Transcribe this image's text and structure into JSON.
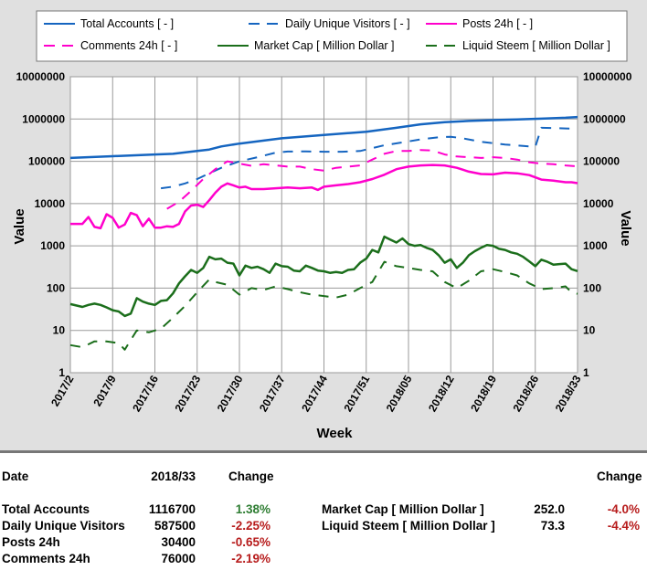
{
  "chart_data": {
    "type": "line",
    "xlabel": "Week",
    "ylabel_left": "Value",
    "ylabel_right": "Value",
    "yscale": "log",
    "ylim": [
      1,
      10000000
    ],
    "y_ticks": [
      "1",
      "10",
      "100",
      "1000",
      "10000",
      "100000",
      "1000000",
      "10000000"
    ],
    "x_ticks": [
      "2017/2",
      "2017/9",
      "2017/16",
      "2017/23",
      "2017/30",
      "2017/37",
      "2017/44",
      "2017/51",
      "2018/05",
      "2018/12",
      "2018/19",
      "2018/26",
      "2018/33"
    ],
    "grid": true,
    "legend_position": "top",
    "series": [
      {
        "name": "Total Accounts [ - ]",
        "color": "#1565c0",
        "dash": "solid",
        "points": [
          [
            0,
            120000
          ],
          [
            7,
            132000
          ],
          [
            14,
            145000
          ],
          [
            17,
            150000
          ],
          [
            21,
            175000
          ],
          [
            23,
            190000
          ],
          [
            25,
            225000
          ],
          [
            28,
            262000
          ],
          [
            35,
            350000
          ],
          [
            42,
            420000
          ],
          [
            49,
            500000
          ],
          [
            54,
            620000
          ],
          [
            58,
            750000
          ],
          [
            62,
            840000
          ],
          [
            66,
            900000
          ],
          [
            70,
            940000
          ],
          [
            74,
            980000
          ],
          [
            78,
            1020000
          ],
          [
            82,
            1070000
          ],
          [
            84,
            1116700
          ]
        ]
      },
      {
        "name": "Daily Unique Visitors [ - ]",
        "color": "#1565c0",
        "dash": "dashed",
        "points": [
          [
            15,
            23000
          ],
          [
            17,
            25000
          ],
          [
            19,
            30000
          ],
          [
            21,
            38000
          ],
          [
            23,
            52000
          ],
          [
            25,
            70000
          ],
          [
            28,
            100000
          ],
          [
            31,
            125000
          ],
          [
            34,
            160000
          ],
          [
            36,
            170000
          ],
          [
            39,
            172000
          ],
          [
            42,
            168000
          ],
          [
            45,
            168000
          ],
          [
            48,
            175000
          ],
          [
            52,
            240000
          ],
          [
            55,
            280000
          ],
          [
            58,
            330000
          ],
          [
            61,
            370000
          ],
          [
            63,
            380000
          ],
          [
            65,
            350000
          ],
          [
            68,
            290000
          ],
          [
            72,
            250000
          ],
          [
            75,
            230000
          ],
          [
            77,
            220000
          ],
          [
            78,
            620000
          ],
          [
            80,
            610000
          ],
          [
            82,
            600000
          ],
          [
            84,
            587500
          ]
        ]
      },
      {
        "name": "Posts 24h [ - ]",
        "color": "#ff00cc",
        "dash": "solid",
        "points": [
          [
            0,
            3300
          ],
          [
            2,
            3300
          ],
          [
            3,
            4800
          ],
          [
            4,
            2800
          ],
          [
            5,
            2600
          ],
          [
            6,
            5600
          ],
          [
            7,
            4600
          ],
          [
            8,
            2700
          ],
          [
            9,
            3200
          ],
          [
            10,
            6000
          ],
          [
            11,
            5300
          ],
          [
            12,
            2900
          ],
          [
            13,
            4400
          ],
          [
            14,
            2700
          ],
          [
            15,
            2700
          ],
          [
            16,
            2900
          ],
          [
            17,
            2800
          ],
          [
            18,
            3300
          ],
          [
            19,
            6500
          ],
          [
            20,
            9000
          ],
          [
            21,
            9400
          ],
          [
            22,
            8300
          ],
          [
            23,
            12000
          ],
          [
            24,
            18000
          ],
          [
            25,
            25000
          ],
          [
            26,
            30000
          ],
          [
            27,
            27000
          ],
          [
            28,
            24000
          ],
          [
            29,
            25000
          ],
          [
            30,
            22000
          ],
          [
            32,
            22000
          ],
          [
            34,
            23000
          ],
          [
            36,
            24000
          ],
          [
            38,
            23000
          ],
          [
            40,
            24000
          ],
          [
            41,
            21000
          ],
          [
            42,
            25000
          ],
          [
            44,
            27000
          ],
          [
            46,
            29000
          ],
          [
            48,
            32000
          ],
          [
            50,
            38000
          ],
          [
            52,
            48000
          ],
          [
            54,
            65000
          ],
          [
            56,
            75000
          ],
          [
            58,
            80000
          ],
          [
            60,
            82000
          ],
          [
            62,
            80000
          ],
          [
            64,
            70000
          ],
          [
            66,
            57000
          ],
          [
            68,
            50000
          ],
          [
            70,
            49000
          ],
          [
            72,
            54000
          ],
          [
            74,
            52000
          ],
          [
            76,
            47000
          ],
          [
            78,
            37000
          ],
          [
            80,
            35000
          ],
          [
            82,
            32000
          ],
          [
            83,
            32000
          ],
          [
            84,
            30400
          ]
        ]
      },
      {
        "name": "Comments 24h [ - ]",
        "color": "#ff00cc",
        "dash": "dashed",
        "points": [
          [
            16,
            7500
          ],
          [
            18,
            11000
          ],
          [
            20,
            20000
          ],
          [
            22,
            38000
          ],
          [
            24,
            65000
          ],
          [
            26,
            100000
          ],
          [
            28,
            88000
          ],
          [
            30,
            78000
          ],
          [
            32,
            85000
          ],
          [
            34,
            80000
          ],
          [
            36,
            75000
          ],
          [
            38,
            75000
          ],
          [
            40,
            65000
          ],
          [
            42,
            60000
          ],
          [
            44,
            70000
          ],
          [
            46,
            75000
          ],
          [
            48,
            80000
          ],
          [
            50,
            110000
          ],
          [
            52,
            150000
          ],
          [
            54,
            175000
          ],
          [
            56,
            175000
          ],
          [
            58,
            185000
          ],
          [
            60,
            180000
          ],
          [
            62,
            145000
          ],
          [
            64,
            130000
          ],
          [
            66,
            125000
          ],
          [
            68,
            120000
          ],
          [
            70,
            125000
          ],
          [
            72,
            120000
          ],
          [
            74,
            110000
          ],
          [
            76,
            95000
          ],
          [
            78,
            88000
          ],
          [
            80,
            85000
          ],
          [
            82,
            80000
          ],
          [
            84,
            76000
          ]
        ]
      },
      {
        "name": "Market Cap [ Million Dollar ]",
        "color": "#1b6e1b",
        "dash": "solid",
        "points": [
          [
            0,
            42
          ],
          [
            2,
            36
          ],
          [
            3,
            40
          ],
          [
            4,
            43
          ],
          [
            5,
            40
          ],
          [
            6,
            35
          ],
          [
            7,
            30
          ],
          [
            8,
            28
          ],
          [
            9,
            22
          ],
          [
            10,
            25
          ],
          [
            11,
            58
          ],
          [
            12,
            48
          ],
          [
            13,
            43
          ],
          [
            14,
            40
          ],
          [
            15,
            50
          ],
          [
            16,
            52
          ],
          [
            17,
            75
          ],
          [
            18,
            130
          ],
          [
            19,
            190
          ],
          [
            20,
            270
          ],
          [
            21,
            230
          ],
          [
            22,
            300
          ],
          [
            23,
            550
          ],
          [
            24,
            480
          ],
          [
            25,
            500
          ],
          [
            26,
            400
          ],
          [
            27,
            380
          ],
          [
            28,
            200
          ],
          [
            29,
            340
          ],
          [
            30,
            300
          ],
          [
            31,
            320
          ],
          [
            32,
            280
          ],
          [
            33,
            230
          ],
          [
            34,
            380
          ],
          [
            35,
            330
          ],
          [
            36,
            320
          ],
          [
            37,
            260
          ],
          [
            38,
            250
          ],
          [
            39,
            340
          ],
          [
            40,
            300
          ],
          [
            41,
            260
          ],
          [
            42,
            250
          ],
          [
            43,
            230
          ],
          [
            44,
            240
          ],
          [
            45,
            230
          ],
          [
            46,
            270
          ],
          [
            47,
            280
          ],
          [
            48,
            400
          ],
          [
            49,
            500
          ],
          [
            50,
            800
          ],
          [
            51,
            700
          ],
          [
            52,
            1650
          ],
          [
            53,
            1400
          ],
          [
            54,
            1200
          ],
          [
            55,
            1500
          ],
          [
            56,
            1100
          ],
          [
            57,
            1000
          ],
          [
            58,
            1050
          ],
          [
            59,
            900
          ],
          [
            60,
            800
          ],
          [
            61,
            600
          ],
          [
            62,
            400
          ],
          [
            63,
            480
          ],
          [
            64,
            300
          ],
          [
            65,
            400
          ],
          [
            66,
            600
          ],
          [
            67,
            750
          ],
          [
            68,
            900
          ],
          [
            69,
            1050
          ],
          [
            70,
            1000
          ],
          [
            71,
            850
          ],
          [
            72,
            800
          ],
          [
            73,
            700
          ],
          [
            74,
            650
          ],
          [
            75,
            550
          ],
          [
            76,
            430
          ],
          [
            77,
            330
          ],
          [
            78,
            470
          ],
          [
            79,
            420
          ],
          [
            80,
            360
          ],
          [
            81,
            370
          ],
          [
            82,
            380
          ],
          [
            83,
            280
          ],
          [
            84,
            252
          ]
        ]
      },
      {
        "name": "Liquid Steem [ Million Dollar ]",
        "color": "#1b6e1b",
        "dash": "dashed",
        "points": [
          [
            0,
            4.5
          ],
          [
            2,
            4
          ],
          [
            4,
            5.5
          ],
          [
            6,
            5.5
          ],
          [
            8,
            5
          ],
          [
            9,
            3.5
          ],
          [
            11,
            10
          ],
          [
            13,
            9
          ],
          [
            15,
            11
          ],
          [
            17,
            20
          ],
          [
            19,
            38
          ],
          [
            21,
            80
          ],
          [
            23,
            160
          ],
          [
            24,
            140
          ],
          [
            26,
            120
          ],
          [
            28,
            70
          ],
          [
            30,
            100
          ],
          [
            32,
            90
          ],
          [
            34,
            110
          ],
          [
            36,
            95
          ],
          [
            38,
            80
          ],
          [
            40,
            70
          ],
          [
            42,
            65
          ],
          [
            44,
            60
          ],
          [
            46,
            70
          ],
          [
            48,
            100
          ],
          [
            50,
            140
          ],
          [
            52,
            420
          ],
          [
            54,
            330
          ],
          [
            56,
            300
          ],
          [
            58,
            270
          ],
          [
            60,
            250
          ],
          [
            62,
            140
          ],
          [
            64,
            100
          ],
          [
            66,
            150
          ],
          [
            68,
            250
          ],
          [
            70,
            280
          ],
          [
            72,
            240
          ],
          [
            74,
            200
          ],
          [
            76,
            130
          ],
          [
            78,
            95
          ],
          [
            80,
            100
          ],
          [
            82,
            110
          ],
          [
            83,
            80
          ],
          [
            84,
            73.3
          ]
        ]
      }
    ]
  },
  "stats": {
    "date_label": "Date",
    "date_value": "2018/33",
    "change_label": "Change",
    "change_label_right": "Change",
    "left": [
      {
        "label": "Total Accounts",
        "value": "1116700",
        "change": "1.38%",
        "dir": "pos"
      },
      {
        "label": "Daily Unique Visitors",
        "value": "587500",
        "change": "-2.25%",
        "dir": "neg"
      },
      {
        "label": "Posts 24h",
        "value": "30400",
        "change": "-0.65%",
        "dir": "neg"
      },
      {
        "label": "Comments 24h",
        "value": "76000",
        "change": "-2.19%",
        "dir": "neg"
      }
    ],
    "right": [
      {
        "label": "Market Cap [ Million Dollar ]",
        "value": "252.0",
        "change": "-4.0%",
        "dir": "neg"
      },
      {
        "label": "Liquid Steem [ Million Dollar ]",
        "value": "73.3",
        "change": "-4.4%",
        "dir": "neg"
      }
    ]
  }
}
